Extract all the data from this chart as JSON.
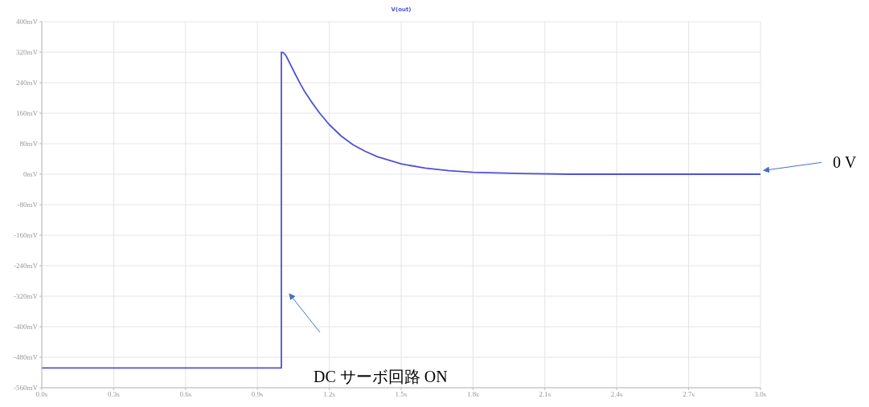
{
  "chart_data": {
    "type": "line",
    "legend": "top",
    "grid": true,
    "xlim": [
      0,
      3.0
    ],
    "xticks": [
      {
        "value": 0,
        "label": "0.0s"
      },
      {
        "value": 0.3,
        "label": "0.3s"
      },
      {
        "value": 0.6,
        "label": "0.6s"
      },
      {
        "value": 0.9,
        "label": "0.9s"
      },
      {
        "value": 1.2,
        "label": "1.2s"
      },
      {
        "value": 1.5,
        "label": "1.5s"
      },
      {
        "value": 1.8,
        "label": "1.8s"
      },
      {
        "value": 2.1,
        "label": "2.1s"
      },
      {
        "value": 2.4,
        "label": "2.4s"
      },
      {
        "value": 2.7,
        "label": "2.7s"
      },
      {
        "value": 3.0,
        "label": "3.0s"
      }
    ],
    "ylim": [
      -560,
      400
    ],
    "yticks": [
      {
        "value": 400,
        "label": "400mV"
      },
      {
        "value": 320,
        "label": "320mV"
      },
      {
        "value": 240,
        "label": "240mV"
      },
      {
        "value": 160,
        "label": "160mV"
      },
      {
        "value": 80,
        "label": "80mV"
      },
      {
        "value": 0,
        "label": "0mV"
      },
      {
        "value": -80,
        "label": "-80mV"
      },
      {
        "value": -160,
        "label": "-160mV"
      },
      {
        "value": -240,
        "label": "-240mV"
      },
      {
        "value": -320,
        "label": "-320mV"
      },
      {
        "value": -400,
        "label": "-400mV"
      },
      {
        "value": -480,
        "label": "-480mV"
      },
      {
        "value": -560,
        "label": "-560mV"
      }
    ],
    "series": [
      {
        "name": "V(out)",
        "color": "#5050d8",
        "x": [
          0,
          1.0,
          1.0,
          1.01,
          1.02,
          1.04,
          1.06,
          1.08,
          1.1,
          1.13,
          1.16,
          1.2,
          1.25,
          1.3,
          1.35,
          1.4,
          1.5,
          1.6,
          1.7,
          1.8,
          2.0,
          2.2,
          3.0
        ],
        "values": [
          -508,
          -508,
          320,
          318,
          310,
          285,
          260,
          236,
          214,
          186,
          160,
          130,
          100,
          77,
          60,
          46,
          27,
          16,
          9,
          5,
          2,
          0,
          0
        ]
      }
    ],
    "annotations": [
      {
        "text": "0 V",
        "x": 3.0,
        "y": 0
      },
      "DC サーボ回路 ON"
    ]
  }
}
